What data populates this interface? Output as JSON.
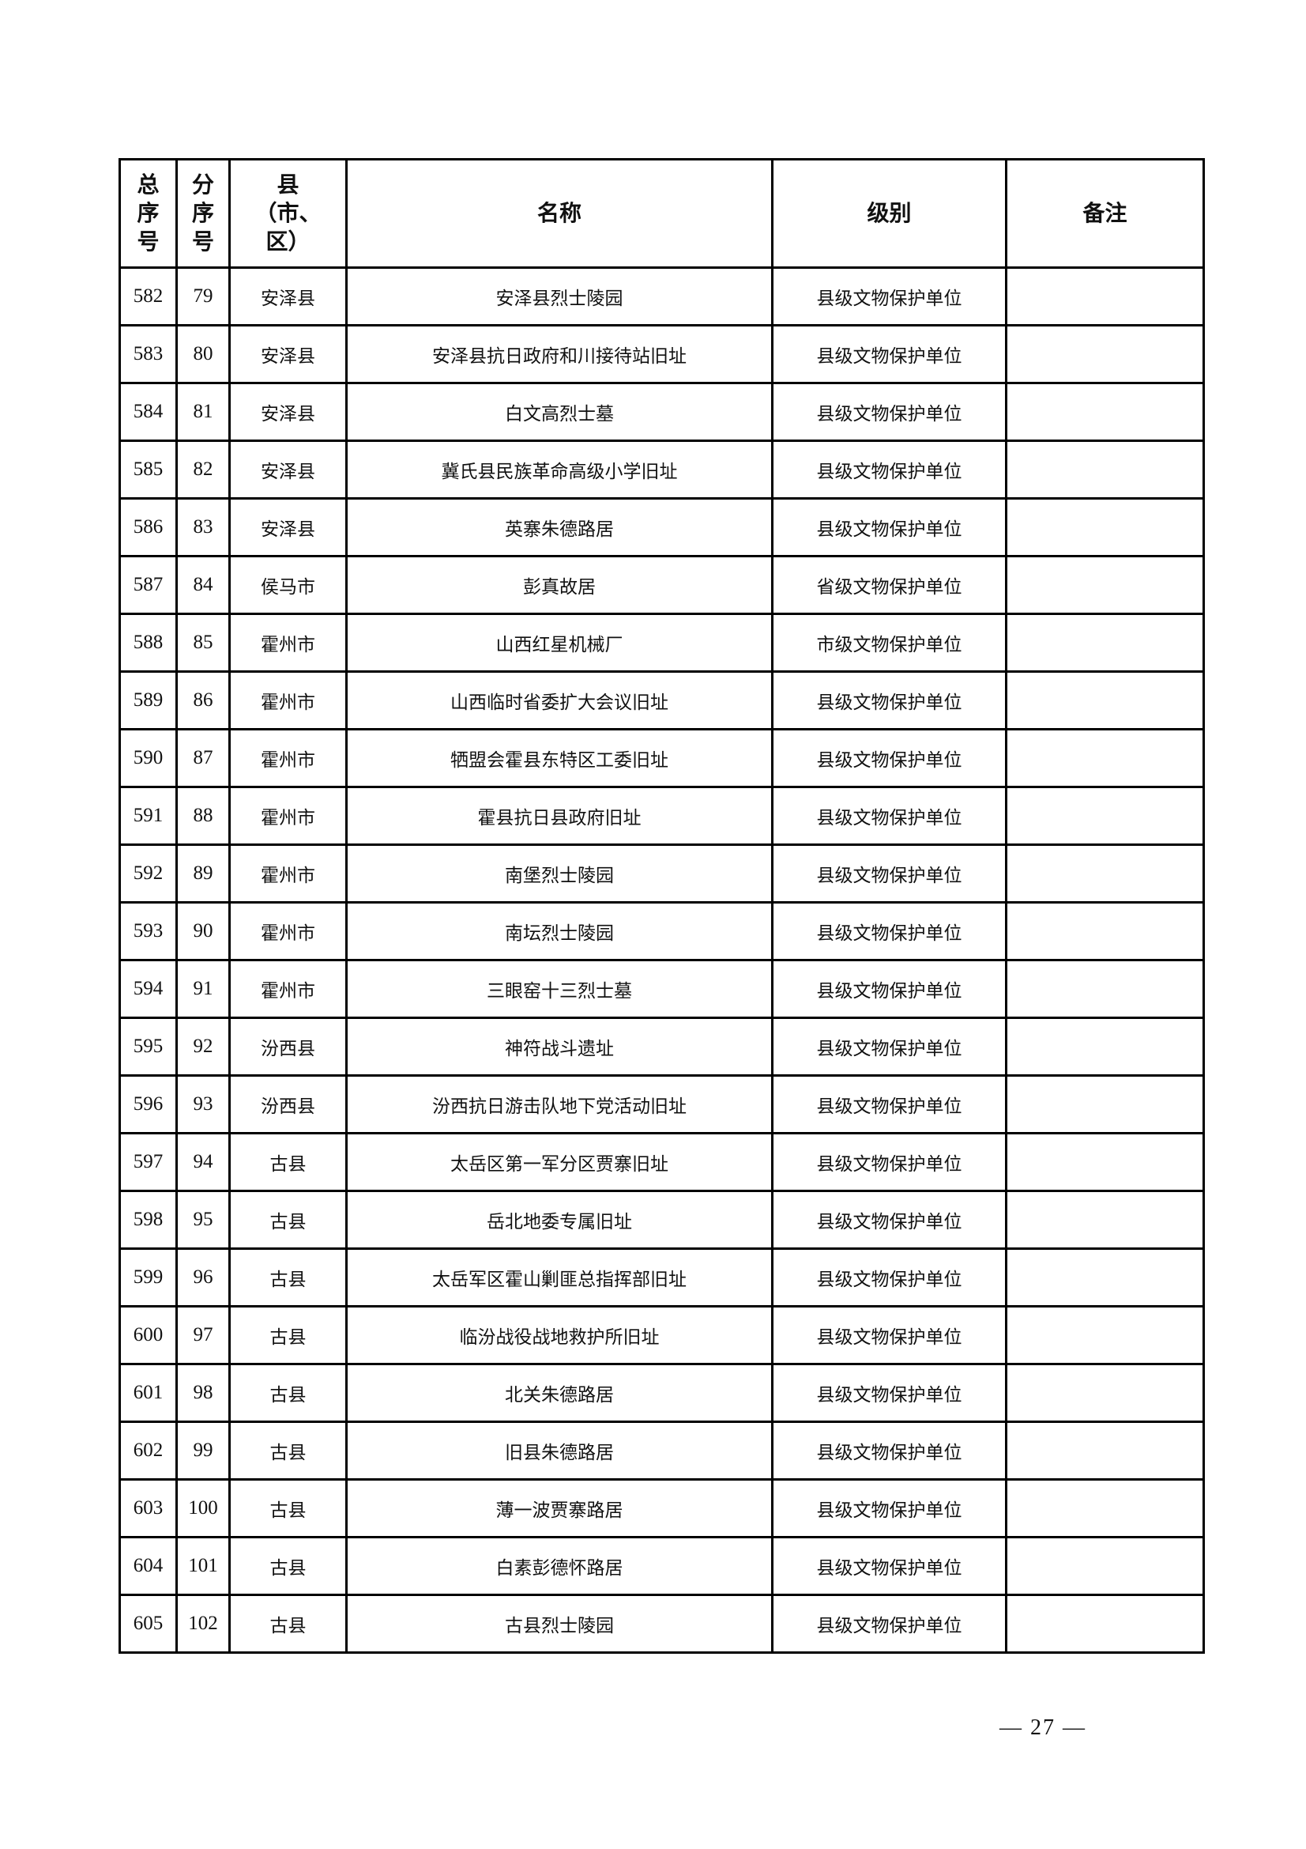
{
  "table": {
    "headers": [
      "总\n序\n号",
      "分\n序\n号",
      "县\n（市、\n区）",
      "名称",
      "级别",
      "备注"
    ],
    "rows": [
      [
        "582",
        "79",
        "安泽县",
        "安泽县烈士陵园",
        "县级文物保护单位",
        ""
      ],
      [
        "583",
        "80",
        "安泽县",
        "安泽县抗日政府和川接待站旧址",
        "县级文物保护单位",
        ""
      ],
      [
        "584",
        "81",
        "安泽县",
        "白文高烈士墓",
        "县级文物保护单位",
        ""
      ],
      [
        "585",
        "82",
        "安泽县",
        "冀氏县民族革命高级小学旧址",
        "县级文物保护单位",
        ""
      ],
      [
        "586",
        "83",
        "安泽县",
        "英寨朱德路居",
        "县级文物保护单位",
        ""
      ],
      [
        "587",
        "84",
        "侯马市",
        "彭真故居",
        "省级文物保护单位",
        ""
      ],
      [
        "588",
        "85",
        "霍州市",
        "山西红星机械厂",
        "市级文物保护单位",
        ""
      ],
      [
        "589",
        "86",
        "霍州市",
        "山西临时省委扩大会议旧址",
        "县级文物保护单位",
        ""
      ],
      [
        "590",
        "87",
        "霍州市",
        "牺盟会霍县东特区工委旧址",
        "县级文物保护单位",
        ""
      ],
      [
        "591",
        "88",
        "霍州市",
        "霍县抗日县政府旧址",
        "县级文物保护单位",
        ""
      ],
      [
        "592",
        "89",
        "霍州市",
        "南堡烈士陵园",
        "县级文物保护单位",
        ""
      ],
      [
        "593",
        "90",
        "霍州市",
        "南坛烈士陵园",
        "县级文物保护单位",
        ""
      ],
      [
        "594",
        "91",
        "霍州市",
        "三眼窑十三烈士墓",
        "县级文物保护单位",
        ""
      ],
      [
        "595",
        "92",
        "汾西县",
        "神符战斗遗址",
        "县级文物保护单位",
        ""
      ],
      [
        "596",
        "93",
        "汾西县",
        "汾西抗日游击队地下党活动旧址",
        "县级文物保护单位",
        ""
      ],
      [
        "597",
        "94",
        "古县",
        "太岳区第一军分区贾寨旧址",
        "县级文物保护单位",
        ""
      ],
      [
        "598",
        "95",
        "古县",
        "岳北地委专属旧址",
        "县级文物保护单位",
        ""
      ],
      [
        "599",
        "96",
        "古县",
        "太岳军区霍山剿匪总指挥部旧址",
        "县级文物保护单位",
        ""
      ],
      [
        "600",
        "97",
        "古县",
        "临汾战役战地救护所旧址",
        "县级文物保护单位",
        ""
      ],
      [
        "601",
        "98",
        "古县",
        "北关朱德路居",
        "县级文物保护单位",
        ""
      ],
      [
        "602",
        "99",
        "古县",
        "旧县朱德路居",
        "县级文物保护单位",
        ""
      ],
      [
        "603",
        "100",
        "古县",
        "薄一波贾寨路居",
        "县级文物保护单位",
        ""
      ],
      [
        "604",
        "101",
        "古县",
        "白素彭德怀路居",
        "县级文物保护单位",
        ""
      ],
      [
        "605",
        "102",
        "古县",
        "古县烈士陵园",
        "县级文物保护单位",
        ""
      ]
    ]
  },
  "page_number": "—  27  —"
}
